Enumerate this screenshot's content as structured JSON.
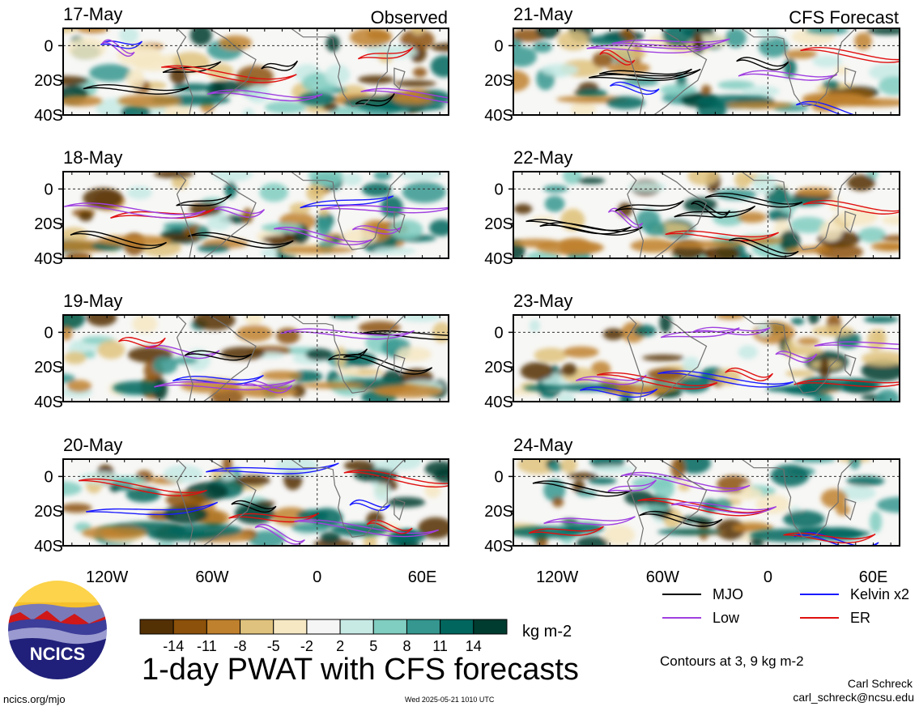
{
  "title": "1-day PWAT with CFS forecasts",
  "observed_label": "Observed",
  "forecast_label": "CFS Forecast",
  "colorbar": {
    "unit": "kg m-2",
    "tick_labels": [
      "-14",
      "-11",
      "-8",
      "-5",
      "-2",
      "2",
      "5",
      "8",
      "11",
      "14"
    ],
    "colors": [
      "#543005",
      "#8c510a",
      "#bf812d",
      "#dfc27d",
      "#f6e8c3",
      "#f5f5f5",
      "#c7eae5",
      "#80cdc1",
      "#35978f",
      "#01665e",
      "#003c30"
    ]
  },
  "legend": {
    "items": [
      {
        "label": "MJO",
        "color": "#000000"
      },
      {
        "label": "Kelvin x2",
        "color": "#1a1aff"
      },
      {
        "label": "Low",
        "color": "#a040e0"
      },
      {
        "label": "ER",
        "color": "#e01010"
      }
    ],
    "contour_note": "Contours at 3, 9 kg m-2"
  },
  "author": {
    "name": "Carl Schreck",
    "email": "carl_schreck@ncsu.edu"
  },
  "logo_text": "NCICS",
  "site": "ncics.org/mjo",
  "timestamp": "Wed 2025-05-21 1010 UTC",
  "chart_data": {
    "type": "heatmap",
    "variable": "1-day PWAT anomaly",
    "unit": "kg m-2",
    "x_ticks": [
      "120W",
      "60W",
      "0",
      "60E"
    ],
    "y_ticks": [
      "0",
      "20S",
      "40S"
    ],
    "xlim": [
      -145,
      75
    ],
    "ylim": [
      -40,
      10
    ],
    "contour_levels": [
      3,
      9
    ],
    "observed_dates": [
      "17-May",
      "18-May",
      "19-May",
      "20-May"
    ],
    "forecast_dates": [
      "21-May",
      "22-May",
      "23-May",
      "24-May"
    ]
  }
}
